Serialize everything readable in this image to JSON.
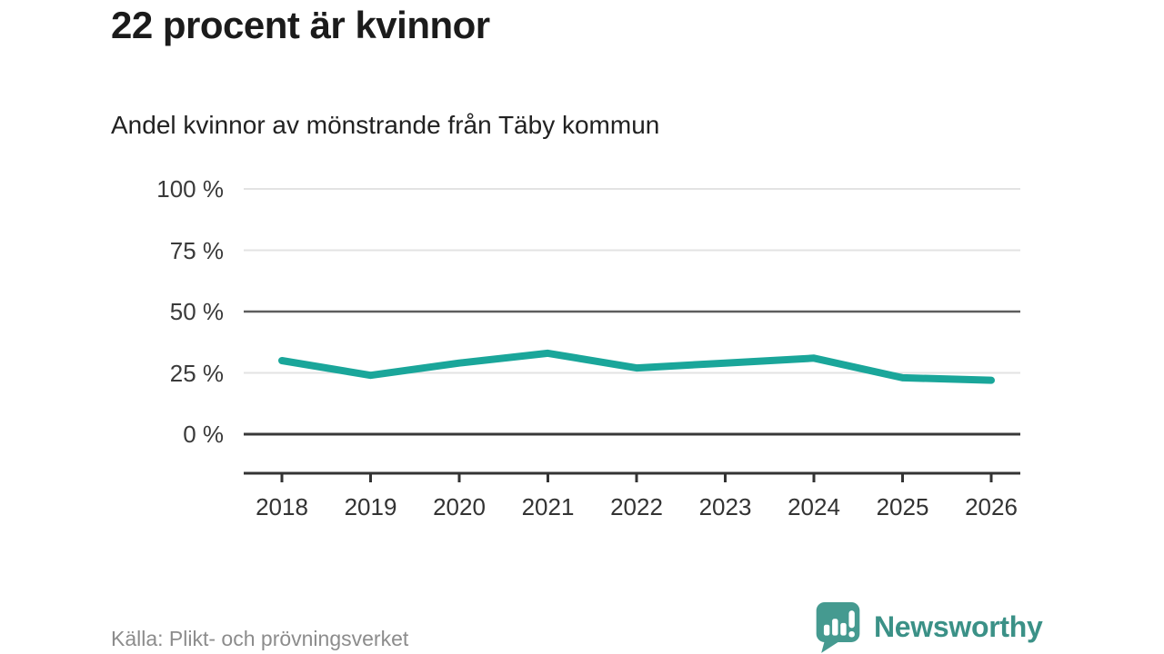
{
  "header": {
    "title": "22 procent är kvinnor",
    "subtitle": "Andel kvinnor av mönstrande från Täby kommun"
  },
  "footer": {
    "source": "Källa: Plikt- och prövningsverket",
    "brand_name": "Newsworthy",
    "brand_logo": "speech-bubble-bar-chart-icon"
  },
  "colors": {
    "line": "#1aa69a",
    "grid_light": "#e3e3e3",
    "grid_medium": "#5d5d5d",
    "grid_zero": "#383838",
    "axis": "#333333",
    "tick_text": "#3a3a3a",
    "title_text": "#1b1b1b",
    "source_text": "#8c8c8c",
    "brand_teal": "#3b9187",
    "logo_bubble": "#459a90"
  },
  "chart_data": {
    "type": "line",
    "title": "22 procent är kvinnor",
    "subtitle": "Andel kvinnor av mönstrande från Täby kommun",
    "xlabel": "",
    "ylabel": "",
    "unit": "%",
    "categories": [
      "2018",
      "2019",
      "2020",
      "2021",
      "2022",
      "2023",
      "2024",
      "2025",
      "2026"
    ],
    "series": [
      {
        "name": "Andel kvinnor av mönstrande, Täby kommun",
        "values": [
          30,
          24,
          29,
          33,
          27,
          29,
          31,
          23,
          22
        ]
      }
    ],
    "ylim": [
      0,
      100
    ],
    "yticks": [
      {
        "label": "100 %",
        "value": 100,
        "emphasis": "light"
      },
      {
        "label": "75 %",
        "value": 75,
        "emphasis": "light"
      },
      {
        "label": "50 %",
        "value": 50,
        "emphasis": "medium"
      },
      {
        "label": "25 %",
        "value": 25,
        "emphasis": "light"
      },
      {
        "label": "0 %",
        "value": 0,
        "emphasis": "zero"
      }
    ],
    "grid": "horizontal",
    "legend": "none",
    "markers": "none",
    "source": "Källa: Plikt- och prövningsverket"
  }
}
